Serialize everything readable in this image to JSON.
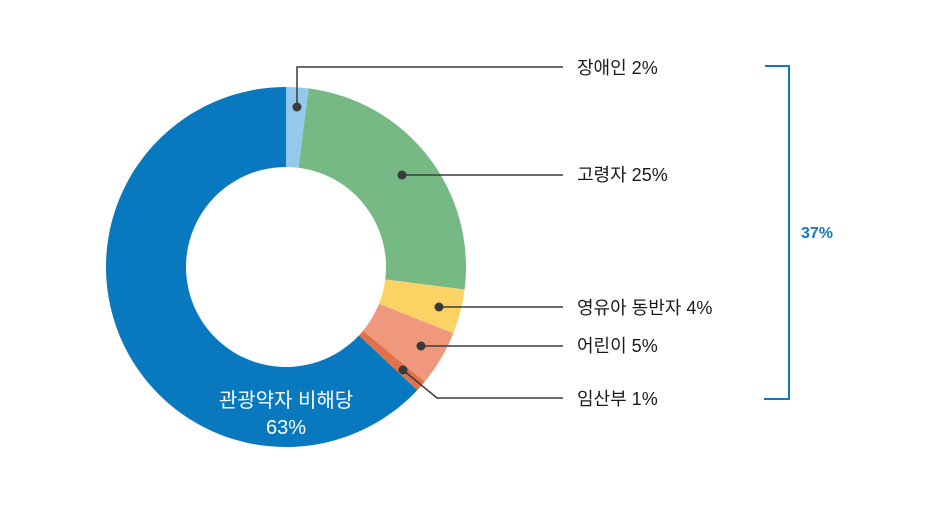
{
  "chart_data": {
    "type": "pie",
    "variant": "donut",
    "unit": "%",
    "direction": "clockwise",
    "start_angle_deg": 0,
    "segments": [
      {
        "label": "장애인",
        "value": 2,
        "display": "장애인 2%",
        "color": "#94C8EC"
      },
      {
        "label": "고령자",
        "value": 25,
        "display": "고령자 25%",
        "color": "#77B985"
      },
      {
        "label": "영유아 동반자",
        "value": 4,
        "display": "영유아 동반자 4%",
        "color": "#FBD364"
      },
      {
        "label": "어린이",
        "value": 5,
        "display": "어린이 5%",
        "color": "#F0987E"
      },
      {
        "label": "임산부",
        "value": 1,
        "display": "임산부 1%",
        "color": "#E0714B"
      },
      {
        "label": "관광약자 비해당",
        "value": 63,
        "display": "관광약자 비해당 63%",
        "color": "#0878BF"
      }
    ],
    "center_label": {
      "line1": "관광약자 비해당",
      "line2": "63%"
    },
    "bracket": {
      "label": "37%",
      "value": 37,
      "covers": [
        "장애인",
        "고령자",
        "영유아 동반자",
        "어린이",
        "임산부"
      ]
    }
  },
  "colors": {
    "background": "#FFFFFF",
    "leader_line": "#3A3A3A",
    "label_text": "#1A1A1A",
    "center_text": "#FFFFFF",
    "bracket": "#1478BE"
  }
}
